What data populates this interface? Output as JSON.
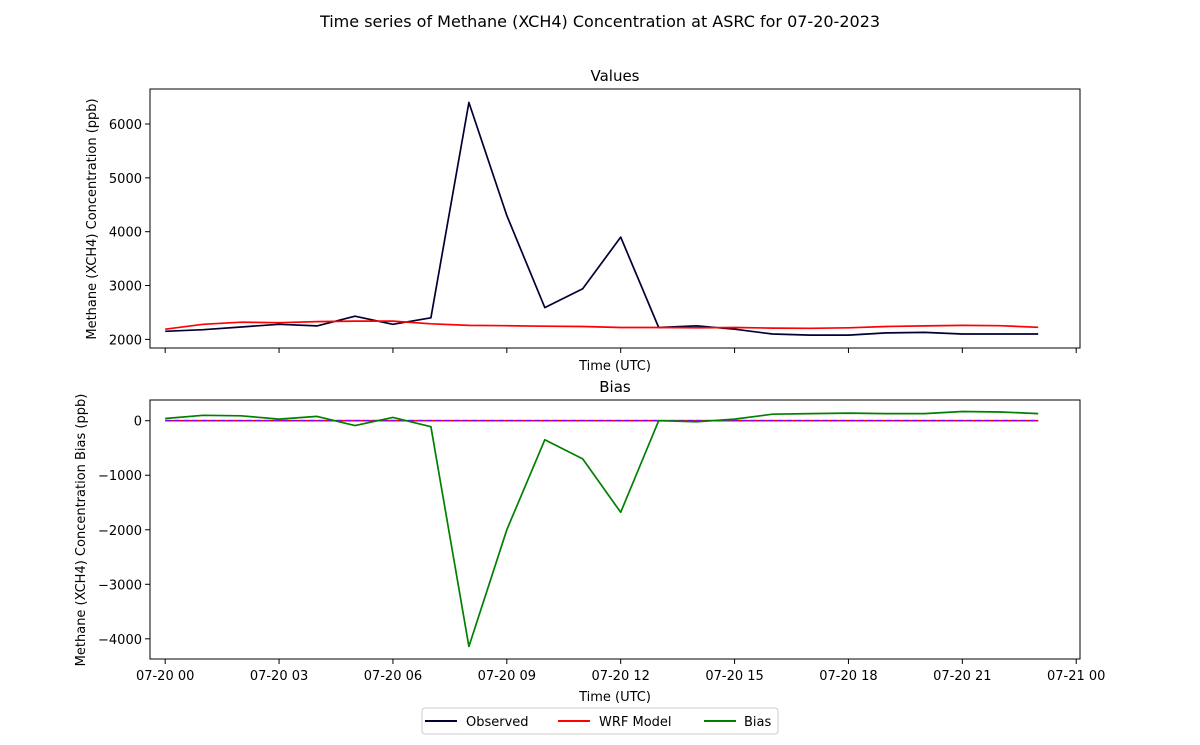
{
  "figure": {
    "suptitle": "Time series of Methane (XCH4) Concentration at ASRC for 07-20-2023",
    "legend": {
      "placement": "bottom-center",
      "entries": [
        {
          "label": "Observed",
          "color": "#000033"
        },
        {
          "label": "WRF Model",
          "color": "#ff0000"
        },
        {
          "label": "Bias",
          "color": "#008000"
        }
      ]
    }
  },
  "chart_data": [
    {
      "type": "line",
      "title": "Values",
      "xlabel": "Time (UTC)",
      "ylabel": "Methane (XCH4) Concentration (ppb)",
      "xlim": [
        -0.4,
        24.1
      ],
      "ylim": [
        1840,
        6650
      ],
      "x_ticks": [
        0,
        3,
        6,
        9,
        12,
        15,
        18,
        21,
        24
      ],
      "x_tick_labels": [],
      "y_ticks": [
        2000,
        3000,
        4000,
        5000,
        6000
      ],
      "y_tick_labels": [
        "2000",
        "3000",
        "4000",
        "5000",
        "6000"
      ],
      "grid": false,
      "x": [
        0,
        1,
        2,
        3,
        4,
        5,
        6,
        7,
        8,
        9,
        10,
        11,
        12,
        13,
        14,
        15,
        16,
        17,
        18,
        19,
        20,
        21,
        22,
        23
      ],
      "series": [
        {
          "name": "Observed",
          "color": "#000033",
          "values": [
            2150,
            2180,
            2230,
            2280,
            2250,
            2430,
            2280,
            2400,
            6400,
            4300,
            2590,
            2940,
            3900,
            2220,
            2250,
            2190,
            2100,
            2080,
            2080,
            2120,
            2130,
            2100,
            2100,
            2100
          ]
        },
        {
          "name": "WRF Model",
          "color": "#ff0000",
          "values": [
            2190,
            2280,
            2320,
            2310,
            2330,
            2340,
            2340,
            2290,
            2260,
            2255,
            2245,
            2240,
            2220,
            2220,
            2215,
            2220,
            2210,
            2205,
            2215,
            2240,
            2250,
            2260,
            2255,
            2225
          ]
        }
      ]
    },
    {
      "type": "line",
      "title": "Bias",
      "xlabel": "Time (UTC)",
      "ylabel": "Methane (XCH4) Concentration Bias (ppb)",
      "xlim": [
        -0.4,
        24.1
      ],
      "ylim": [
        -4370,
        380
      ],
      "x_ticks": [
        0,
        3,
        6,
        9,
        12,
        15,
        18,
        21,
        24
      ],
      "x_tick_labels": [
        "07-20 00",
        "07-20 03",
        "07-20 06",
        "07-20 09",
        "07-20 12",
        "07-20 15",
        "07-20 18",
        "07-20 21",
        "07-21 00"
      ],
      "y_ticks": [
        -4000,
        -3000,
        -2000,
        -1000,
        0
      ],
      "y_tick_labels": [
        "−4000",
        "−3000",
        "−2000",
        "−1000",
        "0"
      ],
      "grid": false,
      "x": [
        0,
        1,
        2,
        3,
        4,
        5,
        6,
        7,
        8,
        9,
        10,
        11,
        12,
        13,
        14,
        15,
        16,
        17,
        18,
        19,
        20,
        21,
        22,
        23
      ],
      "series": [
        {
          "name": "Bias",
          "color": "#008000",
          "values": [
            40,
            100,
            90,
            30,
            80,
            -90,
            60,
            -110,
            -4140,
            -2000,
            -350,
            -700,
            -1680,
            0,
            -20,
            30,
            120,
            130,
            140,
            130,
            130,
            170,
            160,
            130
          ]
        }
      ],
      "reference_lines": [
        {
          "y": 0,
          "color": "#ff0000",
          "style": "solid"
        },
        {
          "y": 0,
          "color": "#8800ff",
          "style": "dashed"
        }
      ]
    }
  ]
}
